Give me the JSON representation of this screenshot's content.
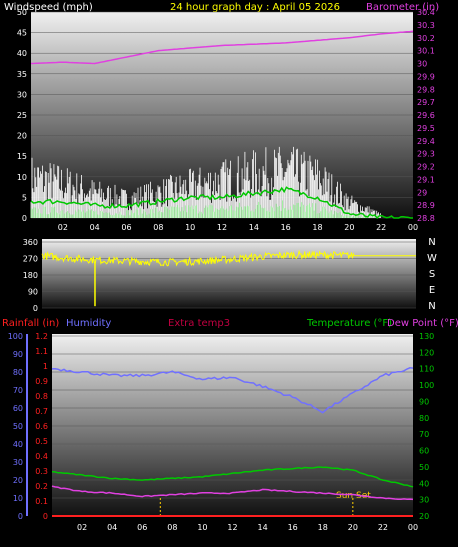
{
  "header": {
    "left_label": "Windspeed (mph)",
    "title": "24 hour graph day : April 05 2026",
    "right_label": "Barometer (in)"
  },
  "bottom_header": {
    "rainfall": "Rainfall (in)",
    "humidity": "Humidity",
    "extra_temp": "Extra temp3",
    "temperature": "Temperature (°F)",
    "dew_point": "Dew Point (°F)"
  },
  "annotations": {
    "sun_set": "Sun Set"
  },
  "colors": {
    "wind": "#ffffff",
    "wind_avg": "#00c800",
    "wind_low": "#a0f0a0",
    "barometer": "#e040e0",
    "wind_dir": "#ffff00",
    "humidity": "#7070ff",
    "temperature": "#00c800",
    "dew_point": "#e040e0",
    "rainfall": "#ff2020",
    "extra_temp": "#c00040",
    "sun_marker": "#ffd000"
  },
  "chart_data": [
    {
      "type": "line",
      "name": "windspeed-barometer",
      "x_ticks": [
        "02",
        "04",
        "06",
        "08",
        "10",
        "12",
        "14",
        "16",
        "18",
        "20",
        "22",
        "00"
      ],
      "x": [
        0,
        2,
        4,
        6,
        8,
        10,
        12,
        14,
        16,
        18,
        20,
        22,
        24
      ],
      "ylim_left": [
        0,
        50
      ],
      "left_ticks": [
        "0",
        "5",
        "10",
        "15",
        "20",
        "25",
        "30",
        "35",
        "40",
        "45",
        "50"
      ],
      "ylim_right": [
        28.8,
        30.4
      ],
      "right_ticks": [
        "28.8",
        "28.9",
        "29",
        "29.1",
        "29.2",
        "29.3",
        "29.4",
        "29.5",
        "29.6",
        "29.7",
        "29.8",
        "29.9",
        "30",
        "30.1",
        "30.2",
        "30.3",
        "30.4"
      ],
      "series": [
        {
          "name": "Windspeed (mph)",
          "values": [
            13,
            11,
            8,
            6,
            8,
            10,
            12,
            14,
            15,
            13,
            5,
            1,
            1
          ]
        },
        {
          "name": "Wind avg",
          "values": [
            4,
            4,
            3,
            3,
            4,
            5,
            5,
            6,
            7,
            5,
            1,
            0,
            0
          ]
        },
        {
          "name": "Barometer (in)",
          "values": [
            30.0,
            30.01,
            30.0,
            30.05,
            30.1,
            30.12,
            30.14,
            30.15,
            30.16,
            30.18,
            30.2,
            30.23,
            30.25
          ]
        }
      ]
    },
    {
      "type": "line",
      "name": "wind-direction",
      "x": [
        0,
        2,
        4,
        6,
        8,
        10,
        12,
        14,
        16,
        18,
        20,
        22,
        24
      ],
      "ylim": [
        0,
        360
      ],
      "left_ticks": [
        "0",
        "90",
        "180",
        "270",
        "360"
      ],
      "right_labels": [
        "N",
        "W",
        "S",
        "E",
        "N"
      ],
      "series": [
        {
          "name": "Wind direction",
          "values": [
            285,
            270,
            260,
            255,
            250,
            255,
            265,
            280,
            290,
            290,
            285,
            285,
            285
          ]
        }
      ]
    },
    {
      "type": "line",
      "name": "humidity-temperature-rain",
      "x_ticks": [
        "02",
        "04",
        "06",
        "08",
        "10",
        "12",
        "14",
        "16",
        "18",
        "20",
        "22",
        "00"
      ],
      "x": [
        0,
        2,
        4,
        6,
        8,
        10,
        12,
        14,
        16,
        18,
        20,
        22,
        24
      ],
      "ylim_humidity": [
        0,
        100
      ],
      "humidity_ticks": [
        "0",
        "10",
        "20",
        "30",
        "40",
        "50",
        "60",
        "70",
        "80",
        "90",
        "100"
      ],
      "ylim_rain": [
        0,
        1.2
      ],
      "rain_ticks": [
        "0",
        "0.1",
        "0.2",
        "0.3",
        "0.4",
        "0.5",
        "0.6",
        "0.7",
        "0.8",
        "0.9",
        "1",
        "1.1",
        "1.2"
      ],
      "ylim_temp": [
        20,
        130
      ],
      "temp_ticks": [
        "20",
        "30",
        "40",
        "50",
        "60",
        "70",
        "80",
        "90",
        "100",
        "110",
        "120",
        "130"
      ],
      "sun_marker_hours": [
        7.2,
        20
      ],
      "series": [
        {
          "name": "Humidity",
          "values": [
            82,
            80,
            78,
            78,
            80,
            76,
            77,
            72,
            66,
            58,
            68,
            78,
            82
          ]
        },
        {
          "name": "Temperature (°F)",
          "values": [
            47,
            45,
            43,
            42,
            43,
            44,
            46,
            48,
            49,
            50,
            48,
            42,
            38
          ]
        },
        {
          "name": "Dew Point (°F)",
          "values": [
            38,
            35,
            34,
            32,
            33,
            34,
            34,
            36,
            35,
            34,
            33,
            31,
            30
          ]
        },
        {
          "name": "Rainfall (in)",
          "values": [
            0,
            0,
            0,
            0,
            0,
            0,
            0,
            0,
            0,
            0,
            0,
            0,
            0
          ]
        }
      ]
    }
  ]
}
